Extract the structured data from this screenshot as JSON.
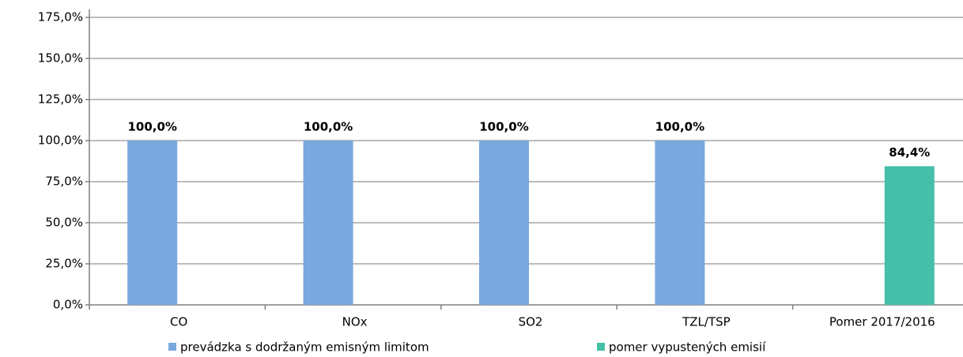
{
  "chart_data": {
    "type": "bar",
    "categories": [
      "CO",
      "NOx",
      "SO2",
      "TZL/TSP",
      "Pomer 2017/2016"
    ],
    "series": [
      {
        "name": "prevádzka s dodržaným emisným limitom",
        "color": "#7aa7de",
        "values": [
          100,
          100,
          100,
          100,
          null
        ],
        "value_labels": [
          "100,0%",
          "100,0%",
          "100,0%",
          "100,0%",
          null
        ]
      },
      {
        "name": "pomer vypustených emisií",
        "color": "#45bfa8",
        "values": [
          null,
          null,
          null,
          null,
          84.4
        ],
        "value_labels": [
          null,
          null,
          null,
          null,
          "84,4%"
        ]
      }
    ],
    "ylim": [
      0,
      175
    ],
    "yticks": [
      {
        "value": 0,
        "label": "0,0%"
      },
      {
        "value": 25,
        "label": "25,0%"
      },
      {
        "value": 50,
        "label": "50,0%"
      },
      {
        "value": 75,
        "label": "75,0%"
      },
      {
        "value": 100,
        "label": "100,0%"
      },
      {
        "value": 125,
        "label": "125,0%"
      },
      {
        "value": 150,
        "label": "150,0%"
      },
      {
        "value": 175,
        "label": "175,0%"
      }
    ],
    "grid": true,
    "legend": "bottom"
  }
}
